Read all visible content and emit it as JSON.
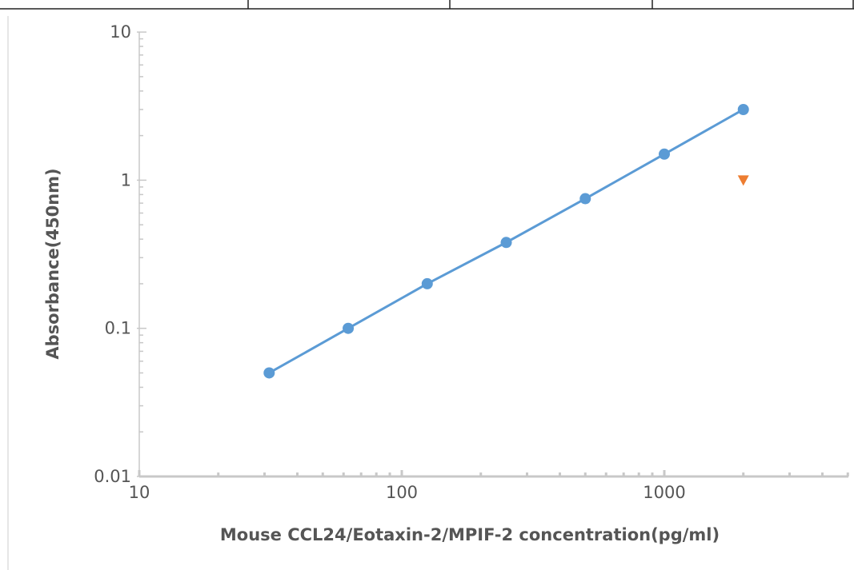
{
  "chart_data": {
    "type": "scatter",
    "title": "",
    "xlabel": "Mouse CCL24/Eotaxin-2/MPIF-2 concentration(pg/ml)",
    "ylabel": "Absorbance(450nm)",
    "xscale": "log",
    "yscale": "log",
    "xlim": [
      10,
      5000
    ],
    "ylim": [
      0.01,
      10
    ],
    "x_ticks": [
      10,
      100,
      1000
    ],
    "x_tick_labels": [
      "10",
      "100",
      "1000"
    ],
    "y_ticks": [
      0.01,
      0.1,
      1,
      10
    ],
    "y_tick_labels": [
      "0.01",
      "0.1",
      "1",
      "10"
    ],
    "grid": false,
    "legend": "none",
    "series": [
      {
        "style": "line-with-markers",
        "color": "#5b9bd5",
        "marker": "circle",
        "x": [
          31.25,
          62.5,
          125,
          250,
          500,
          1000,
          2000
        ],
        "y": [
          0.05,
          0.1,
          0.2,
          0.38,
          0.75,
          1.5,
          3.0
        ]
      },
      {
        "style": "markers",
        "color": "#ed7d31",
        "marker": "triangle-down",
        "x": [
          2000
        ],
        "y": [
          1.0
        ]
      }
    ]
  }
}
